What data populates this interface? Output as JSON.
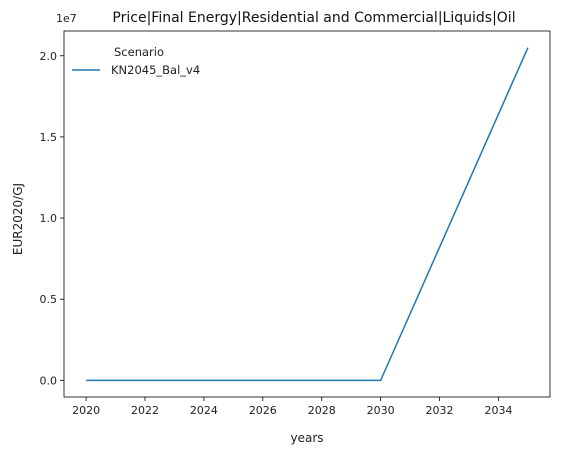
{
  "chart_data": {
    "type": "line",
    "title": "Price|Final Energy|Residential and Commercial|Liquids|Oil",
    "xlabel": "years",
    "ylabel": "EUR2020/GJ",
    "y_scale_label": "1e7",
    "x": [
      2020,
      2025,
      2030,
      2035
    ],
    "series": [
      {
        "name": "KN2045_Bal_v4",
        "color": "#1f77b4",
        "values": [
          0,
          0,
          0,
          20500000
        ]
      }
    ],
    "xlim": [
      2019.25,
      2035.75
    ],
    "ylim": [
      -1025000,
      21525000
    ],
    "x_ticks": [
      2020,
      2022,
      2024,
      2026,
      2028,
      2030,
      2032,
      2034
    ],
    "x_tick_labels": [
      "2020",
      "2022",
      "2024",
      "2026",
      "2028",
      "2030",
      "2032",
      "2034"
    ],
    "y_ticks": [
      0,
      5000000,
      10000000,
      15000000,
      20000000
    ],
    "y_tick_labels": [
      "0.0",
      "0.5",
      "1.0",
      "1.5",
      "2.0"
    ],
    "legend_title": "Scenario",
    "legend_position": "upper-left",
    "grid": false
  }
}
